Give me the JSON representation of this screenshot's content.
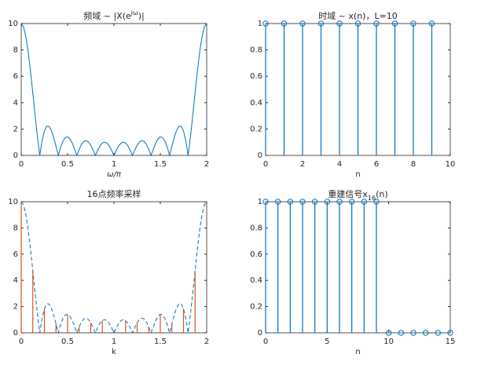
{
  "chart_data": [
    {
      "type": "line",
      "title": "频域 ~ |X(e",
      "title_superscript": "jω",
      "title_suffix": ")|",
      "xlabel": "ω/π",
      "xlabel_style": "italic",
      "xlim": [
        0,
        2
      ],
      "xticks": [
        0,
        0.5,
        1,
        1.5,
        2
      ],
      "ylim": [
        0,
        10
      ],
      "yticks": [
        0,
        2,
        4,
        6,
        8,
        10
      ],
      "series": [
        {
          "type": "line",
          "color": "#0072BD",
          "x": [
            0,
            0.025,
            0.05,
            0.075,
            0.1,
            0.125,
            0.15,
            0.175,
            0.2,
            0.225,
            0.25,
            0.275,
            0.3,
            0.325,
            0.35,
            0.375,
            0.4,
            0.425,
            0.45,
            0.475,
            0.5,
            0.525,
            0.55,
            0.575,
            0.6,
            0.625,
            0.65,
            0.675,
            0.7,
            0.725,
            0.75,
            0.775,
            0.8,
            0.825,
            0.85,
            0.875,
            0.9,
            0.925,
            0.95,
            0.975,
            1,
            1.025,
            1.05,
            1.075,
            1.1,
            1.125,
            1.15,
            1.175,
            1.2,
            1.225,
            1.25,
            1.275,
            1.3,
            1.325,
            1.35,
            1.375,
            1.4,
            1.425,
            1.45,
            1.475,
            1.5,
            1.525,
            1.55,
            1.575,
            1.6,
            1.625,
            1.65,
            1.675,
            1.7,
            1.725,
            1.75,
            1.775,
            1.8,
            1.825,
            1.85,
            1.875,
            1.9,
            1.925,
            1.95,
            1.975,
            2
          ],
          "values": [
            10,
            9.75,
            9.01,
            7.86,
            6.39,
            4.74,
            3.03,
            1.41,
            0,
            1.11,
            1.85,
            2.21,
            2.2,
            1.89,
            1.35,
            0.69,
            0,
            0.62,
            1.09,
            1.36,
            1.41,
            1.26,
            0.93,
            0.49,
            0,
            0.46,
            0.83,
            1.06,
            1.12,
            1.02,
            0.77,
            0.41,
            0,
            0.4,
            0.73,
            0.94,
            1.01,
            0.93,
            0.71,
            0.38,
            0,
            0.38,
            0.71,
            0.93,
            1.01,
            0.94,
            0.73,
            0.4,
            0,
            0.41,
            0.77,
            1.02,
            1.12,
            1.06,
            0.83,
            0.46,
            0,
            0.49,
            0.93,
            1.26,
            1.41,
            1.36,
            1.09,
            0.62,
            0,
            0.69,
            1.35,
            1.89,
            2.2,
            2.21,
            1.85,
            1.11,
            0,
            1.41,
            3.03,
            4.74,
            6.39,
            7.86,
            9.01,
            9.75,
            10
          ]
        }
      ]
    },
    {
      "type": "stem",
      "title": "时域 ~ x(n)，L=10",
      "xlabel": "n",
      "xlim": [
        0,
        10
      ],
      "xticks": [
        0,
        2,
        4,
        6,
        8,
        10
      ],
      "ylim": [
        0,
        1
      ],
      "yticks": [
        0,
        0.2,
        0.4,
        0.6,
        0.8,
        1
      ],
      "series": [
        {
          "type": "stem",
          "color": "#0072BD",
          "marker": "o",
          "x": [
            0,
            1,
            2,
            3,
            4,
            5,
            6,
            7,
            8,
            9
          ],
          "values": [
            1,
            1,
            1,
            1,
            1,
            1,
            1,
            1,
            1,
            1
          ]
        }
      ]
    },
    {
      "type": "combo",
      "title": "16点频率采样",
      "xlabel": "k",
      "xlim": [
        0,
        2
      ],
      "xticks": [
        0,
        0.5,
        1,
        1.5,
        2
      ],
      "ylim": [
        0,
        10
      ],
      "yticks": [
        0,
        2,
        4,
        6,
        8,
        10
      ],
      "series": [
        {
          "type": "line",
          "style": "dashed",
          "color": "#0072BD",
          "x": [
            0,
            0.025,
            0.05,
            0.075,
            0.1,
            0.125,
            0.15,
            0.175,
            0.2,
            0.225,
            0.25,
            0.275,
            0.3,
            0.325,
            0.35,
            0.375,
            0.4,
            0.425,
            0.45,
            0.475,
            0.5,
            0.525,
            0.55,
            0.575,
            0.6,
            0.625,
            0.65,
            0.675,
            0.7,
            0.725,
            0.75,
            0.775,
            0.8,
            0.825,
            0.85,
            0.875,
            0.9,
            0.925,
            0.95,
            0.975,
            1,
            1.025,
            1.05,
            1.075,
            1.1,
            1.125,
            1.15,
            1.175,
            1.2,
            1.225,
            1.25,
            1.275,
            1.3,
            1.325,
            1.35,
            1.375,
            1.4,
            1.425,
            1.45,
            1.475,
            1.5,
            1.525,
            1.55,
            1.575,
            1.6,
            1.625,
            1.65,
            1.675,
            1.7,
            1.725,
            1.75,
            1.775,
            1.8,
            1.825,
            1.85,
            1.875,
            1.9,
            1.925,
            1.95,
            1.975,
            2
          ],
          "values": [
            10,
            9.75,
            9.01,
            7.86,
            6.39,
            4.74,
            3.03,
            1.41,
            0,
            1.11,
            1.85,
            2.21,
            2.2,
            1.89,
            1.35,
            0.69,
            0,
            0.62,
            1.09,
            1.36,
            1.41,
            1.26,
            0.93,
            0.49,
            0,
            0.46,
            0.83,
            1.06,
            1.12,
            1.02,
            0.77,
            0.41,
            0,
            0.4,
            0.73,
            0.94,
            1.01,
            0.93,
            0.71,
            0.38,
            0,
            0.38,
            0.71,
            0.93,
            1.01,
            0.94,
            0.73,
            0.4,
            0,
            0.41,
            0.77,
            1.02,
            1.12,
            1.06,
            0.83,
            0.46,
            0,
            0.49,
            0.93,
            1.26,
            1.41,
            1.36,
            1.09,
            0.62,
            0,
            0.69,
            1.35,
            1.89,
            2.2,
            2.21,
            1.85,
            1.11,
            0,
            1.41,
            3.03,
            4.74,
            6.39,
            7.86,
            9.01,
            9.75,
            10
          ]
        },
        {
          "type": "stem",
          "color": "#D95319",
          "x": [
            0,
            0.125,
            0.25,
            0.375,
            0.5,
            0.625,
            0.75,
            0.875,
            1,
            1.125,
            1.25,
            1.375,
            1.5,
            1.625,
            1.75,
            1.875
          ],
          "values": [
            10,
            4.74,
            1.85,
            0.69,
            1.41,
            0.46,
            0.77,
            0.94,
            0,
            0.94,
            0.77,
            0.46,
            1.41,
            0.69,
            1.85,
            4.74
          ]
        }
      ]
    },
    {
      "type": "stem",
      "title": "重建信号x",
      "title_subscript": "16",
      "title_suffix": "(n)",
      "xlabel": "n",
      "xlim": [
        0,
        15
      ],
      "xticks": [
        0,
        5,
        10,
        15
      ],
      "ylim": [
        0,
        1
      ],
      "yticks": [
        0,
        0.2,
        0.4,
        0.6,
        0.8,
        1
      ],
      "series": [
        {
          "type": "stem",
          "color": "#0072BD",
          "marker": "o",
          "x": [
            0,
            1,
            2,
            3,
            4,
            5,
            6,
            7,
            8,
            9,
            10,
            11,
            12,
            13,
            14,
            15
          ],
          "values": [
            1,
            1,
            1,
            1,
            1,
            1,
            1,
            1,
            1,
            1,
            0,
            0,
            0,
            0,
            0,
            0
          ]
        }
      ]
    }
  ]
}
